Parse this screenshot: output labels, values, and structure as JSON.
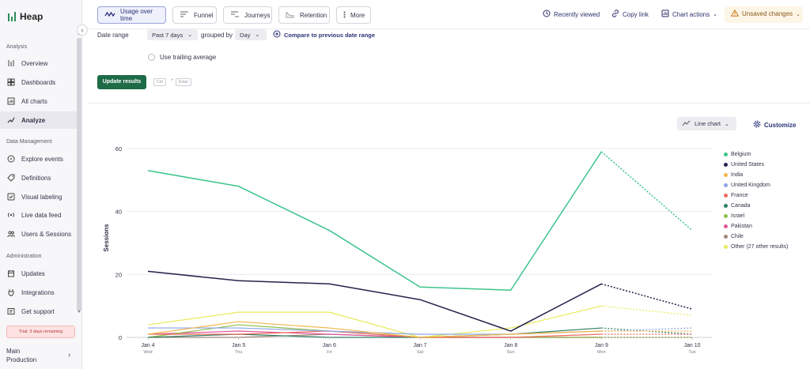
{
  "app": {
    "name": "Heap"
  },
  "sidebar": {
    "sections": [
      {
        "label": "Analysis",
        "items": [
          {
            "label": "Overview",
            "icon": "overview-icon"
          },
          {
            "label": "Dashboards",
            "icon": "dashboards-icon"
          },
          {
            "label": "All charts",
            "icon": "all-charts-icon"
          },
          {
            "label": "Analyze",
            "icon": "analyze-icon",
            "active": true
          }
        ]
      },
      {
        "label": "Data Management",
        "items": [
          {
            "label": "Explore events",
            "icon": "explore-icon"
          },
          {
            "label": "Definitions",
            "icon": "definitions-icon"
          },
          {
            "label": "Visual labeling",
            "icon": "visual-labeling-icon"
          },
          {
            "label": "Live data feed",
            "icon": "live-feed-icon"
          },
          {
            "label": "Users & Sessions",
            "icon": "users-icon"
          }
        ]
      },
      {
        "label": "Administration",
        "items": [
          {
            "label": "Updates",
            "icon": "updates-icon"
          },
          {
            "label": "Integrations",
            "icon": "integrations-icon"
          },
          {
            "label": "Get support",
            "icon": "support-icon"
          }
        ]
      }
    ],
    "trial": "Trial: 3 days remaining",
    "env_name": "Main",
    "env_sub": "Production"
  },
  "toolbar": {
    "tabs": [
      {
        "label": "Usage over time",
        "icon": "usage-icon",
        "selected": true
      },
      {
        "label": "Funnel",
        "icon": "funnel-icon"
      },
      {
        "label": "Journeys",
        "icon": "journeys-icon"
      },
      {
        "label": "Retention",
        "icon": "retention-icon"
      },
      {
        "label": "More",
        "icon": "more-icon"
      }
    ],
    "recently_viewed": "Recently viewed",
    "copy_link": "Copy link",
    "chart_actions": "Chart actions",
    "unsaved": "Unsaved changes"
  },
  "query": {
    "date_range_label": "Date range",
    "date_range_value": "Past 7 days",
    "grouped_by_label": "grouped by",
    "grouped_by_value": "Day",
    "compare": "Compare to previous date range",
    "trailing": "Use trailing average",
    "update": "Update results",
    "kbd_ctrl": "Ctrl",
    "kbd_plus": "+",
    "kbd_enter": "Enter"
  },
  "chart_controls": {
    "chart_type": "Line chart",
    "customize": "Customize"
  },
  "chart_data": {
    "type": "line",
    "ylabel": "Sessions",
    "ylim": [
      0,
      60
    ],
    "yticks": [
      0,
      20,
      40,
      60
    ],
    "categories": [
      "Jan 4",
      "Jan 5",
      "Jan 6",
      "Jan 7",
      "Jan 8",
      "Jan 9",
      "Jan 10"
    ],
    "weekdays": [
      "Wed",
      "Thu",
      "Fri",
      "Sat",
      "Sun",
      "Mon",
      "Tue"
    ],
    "incomplete_from_index": 5,
    "grid": true,
    "legend_position": "right",
    "series": [
      {
        "name": "Belgium",
        "color": "#3cc48a",
        "values": [
          53,
          48,
          34,
          16,
          15,
          59,
          34
        ]
      },
      {
        "name": "United States",
        "color": "#23234d",
        "values": [
          21,
          18,
          17,
          12,
          2,
          17,
          9
        ]
      },
      {
        "name": "India",
        "color": "#f2b64a",
        "values": [
          1,
          5,
          3,
          0,
          1,
          2,
          2
        ]
      },
      {
        "name": "United Kingdom",
        "color": "#8ea6e6",
        "values": [
          3,
          3,
          2,
          1,
          1,
          2,
          3
        ]
      },
      {
        "name": "France",
        "color": "#ec6b5e",
        "values": [
          1,
          1,
          2,
          0,
          0,
          1,
          1
        ]
      },
      {
        "name": "Canada",
        "color": "#2f7e63",
        "values": [
          0,
          1,
          0,
          0,
          1,
          3,
          1
        ]
      },
      {
        "name": "Israel",
        "color": "#8fbf4a",
        "values": [
          0,
          4,
          2,
          0,
          0,
          0,
          0
        ]
      },
      {
        "name": "Pakistan",
        "color": "#e0569a",
        "values": [
          1,
          2,
          1,
          0,
          0,
          0,
          0
        ]
      },
      {
        "name": "Chile",
        "color": "#a08676",
        "values": [
          0,
          0,
          1,
          0,
          0,
          0,
          0
        ]
      },
      {
        "name": "Other (27 other results)",
        "color": "#e8ea5a",
        "values": [
          4,
          8,
          8,
          0,
          3,
          10,
          7
        ]
      }
    ]
  }
}
